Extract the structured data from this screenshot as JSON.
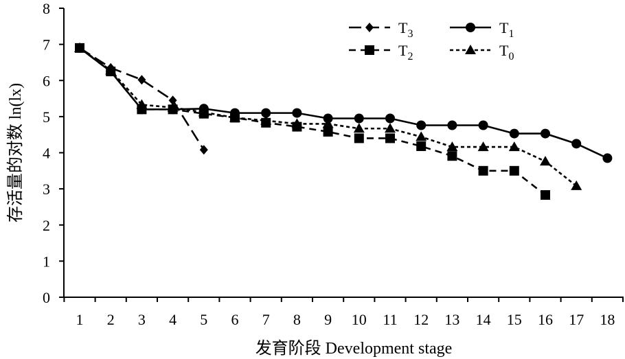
{
  "chart_data": {
    "type": "line",
    "xlabel": "发育阶段 Development stage",
    "ylabel": "存活量的对数 ln(lx)",
    "ylim": [
      0,
      8
    ],
    "ytick_step": 1,
    "categories": [
      "1",
      "2",
      "3",
      "4",
      "5",
      "6",
      "7",
      "8",
      "9",
      "10",
      "11",
      "12",
      "13",
      "14",
      "15",
      "16",
      "17",
      "18"
    ],
    "grid": false,
    "legend_position": "top-right",
    "series": [
      {
        "name": "T3",
        "marker": "diamond",
        "dash": "long-dash",
        "x": [
          1,
          2,
          3,
          4,
          5
        ],
        "y": [
          6.9,
          6.35,
          6.02,
          5.45,
          4.08
        ]
      },
      {
        "name": "T1",
        "marker": "circle",
        "dash": "solid",
        "x": [
          1,
          2,
          3,
          4,
          5,
          6,
          7,
          8,
          9,
          10,
          11,
          12,
          13,
          14,
          15,
          16,
          17,
          18
        ],
        "y": [
          6.9,
          6.25,
          5.2,
          5.2,
          5.22,
          5.1,
          5.1,
          5.1,
          4.95,
          4.95,
          4.95,
          4.76,
          4.76,
          4.76,
          4.53,
          4.53,
          4.25,
          3.85
        ]
      },
      {
        "name": "T2",
        "marker": "square",
        "dash": "medium-dash",
        "x": [
          1,
          2,
          3,
          4,
          5,
          6,
          7,
          8,
          9,
          10,
          11,
          12,
          13,
          14,
          15,
          16
        ],
        "y": [
          6.9,
          6.25,
          5.2,
          5.2,
          5.08,
          4.97,
          4.83,
          4.72,
          4.58,
          4.4,
          4.4,
          4.18,
          3.91,
          3.5,
          3.5,
          2.83
        ]
      },
      {
        "name": "T0",
        "marker": "triangle",
        "dash": "short-dash",
        "x": [
          1,
          2,
          3,
          4,
          5,
          6,
          7,
          8,
          9,
          10,
          11,
          12,
          13,
          14,
          15,
          16,
          17
        ],
        "y": [
          6.9,
          6.28,
          5.33,
          5.25,
          5.12,
          4.97,
          4.89,
          4.8,
          4.8,
          4.67,
          4.67,
          4.44,
          4.16,
          4.16,
          4.16,
          3.76,
          3.08
        ]
      }
    ]
  }
}
